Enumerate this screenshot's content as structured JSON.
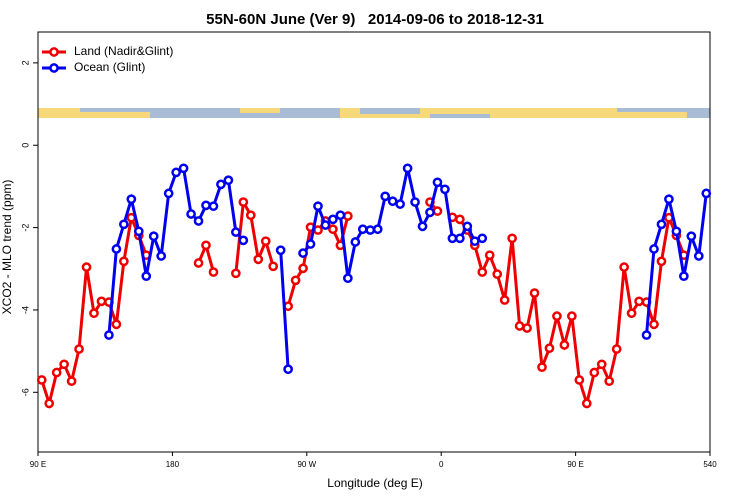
{
  "chart_data": {
    "type": "line",
    "title": "55N-60N June (Ver 9)   2014-09-06 to 2018-12-31",
    "xlabel": "Longitude (deg E)",
    "ylabel": "XCO2 - MLO trend (ppm)",
    "xlim": [
      90,
      540
    ],
    "ylim": [
      -7.45,
      2.75
    ],
    "xticks": [
      {
        "value": 90,
        "label": "90 E"
      },
      180,
      {
        "value": 270,
        "label": "90 W"
      },
      {
        "value": 360,
        "label": "0"
      },
      {
        "value": 450,
        "label": "90 E"
      },
      540
    ],
    "yticks": [
      -6,
      -4,
      -2,
      0,
      2
    ],
    "legend": "topleft",
    "series": [
      {
        "name": "Land (Nadir&Glint)",
        "color": "#ee0000",
        "x": [
          92.5,
          97.5,
          102.5,
          107.5,
          112.5,
          117.5,
          122.5,
          127.5,
          132.5,
          137.5,
          142.5,
          147.5,
          152.5,
          157.5,
          162.5,
          180,
          197.5,
          202.5,
          207.5,
          215,
          222.5,
          227.5,
          232.5,
          237.5,
          242.5,
          247.5,
          252.5,
          257.5,
          262.5,
          267.5,
          272.5,
          277.5,
          282.5,
          287.5,
          292.5,
          297.5,
          325,
          352.5,
          357.5,
          362.5,
          367.5,
          372.5,
          377.5,
          382.5,
          387.5,
          392.5,
          397.5,
          402.5,
          407.5,
          412.5,
          417.5,
          422.5,
          427.5,
          432.5,
          437.5,
          442.5,
          447.5,
          452.5,
          457.5,
          462.5,
          467.5,
          472.5,
          477.5,
          482.5,
          487.5,
          492.5,
          497.5,
          502.5,
          507.5,
          512.5,
          517.5,
          522.5
        ],
        "values": [
          -5.7,
          -6.27,
          -5.52,
          -5.32,
          -5.73,
          -4.95,
          -2.96,
          -4.08,
          -3.79,
          -3.81,
          -4.35,
          -2.82,
          -1.76,
          -2.19,
          -2.67,
          null,
          -2.86,
          -2.43,
          -3.08,
          null,
          -3.11,
          -1.38,
          -1.7,
          -2.77,
          -2.33,
          -2.94,
          null,
          -3.91,
          -3.28,
          -2.99,
          -1.99,
          -2.06,
          -1.84,
          -2.04,
          -2.43,
          -1.72,
          null,
          -1.38,
          -1.6,
          null,
          -1.75,
          -1.8,
          -2.06,
          -2.43,
          -3.08,
          -2.67,
          -3.13,
          -3.76,
          -2.26,
          -4.39,
          -4.44,
          -3.59,
          -5.39,
          -4.93,
          -4.15,
          -4.85,
          -4.15,
          -5.7,
          -6.27,
          -5.52,
          -5.32,
          -5.73,
          -4.95,
          -2.96,
          -4.08,
          -3.79,
          -3.81,
          -4.35,
          -2.82,
          -1.76,
          -2.19,
          -2.67
        ]
      },
      {
        "name": "Ocean (Glint)",
        "color": "#0000ee",
        "x": [
          137.5,
          142.5,
          147.5,
          152.5,
          157.5,
          162.5,
          167.5,
          172.5,
          177.5,
          182.5,
          187.5,
          192.5,
          197.5,
          202.5,
          207.5,
          212.5,
          217.5,
          222.5,
          227.5,
          240,
          252.5,
          257.5,
          262.5,
          267.5,
          272.5,
          277.5,
          282.5,
          287.5,
          292.5,
          297.5,
          302.5,
          307.5,
          312.5,
          317.5,
          322.5,
          327.5,
          332.5,
          337.5,
          342.5,
          347.5,
          352.5,
          357.5,
          362.5,
          367.5,
          372.5,
          377.5,
          382.5,
          387.5,
          420,
          497.5,
          502.5,
          507.5,
          512.5,
          517.5,
          522.5,
          527.5,
          532.5,
          537.5
        ],
        "values": [
          -4.61,
          -2.52,
          -1.92,
          -1.31,
          -2.09,
          -3.18,
          -2.21,
          -2.69,
          -1.17,
          -0.66,
          -0.56,
          -1.67,
          -1.84,
          -1.46,
          -1.48,
          -0.95,
          -0.85,
          -2.11,
          -2.31,
          null,
          -2.55,
          -5.44,
          null,
          -2.62,
          -2.4,
          -1.48,
          -1.94,
          -1.8,
          -1.7,
          -3.23,
          -2.35,
          -2.04,
          -2.06,
          -2.04,
          -1.24,
          -1.36,
          -1.43,
          -0.56,
          -1.38,
          -1.97,
          -1.63,
          -0.9,
          -1.07,
          -2.26,
          -2.26,
          -1.97,
          -2.33,
          -2.26,
          null,
          -4.61,
          -2.52,
          -1.92,
          -1.31,
          -2.09,
          -3.18,
          -2.21,
          -2.69,
          -1.17
        ]
      }
    ]
  }
}
